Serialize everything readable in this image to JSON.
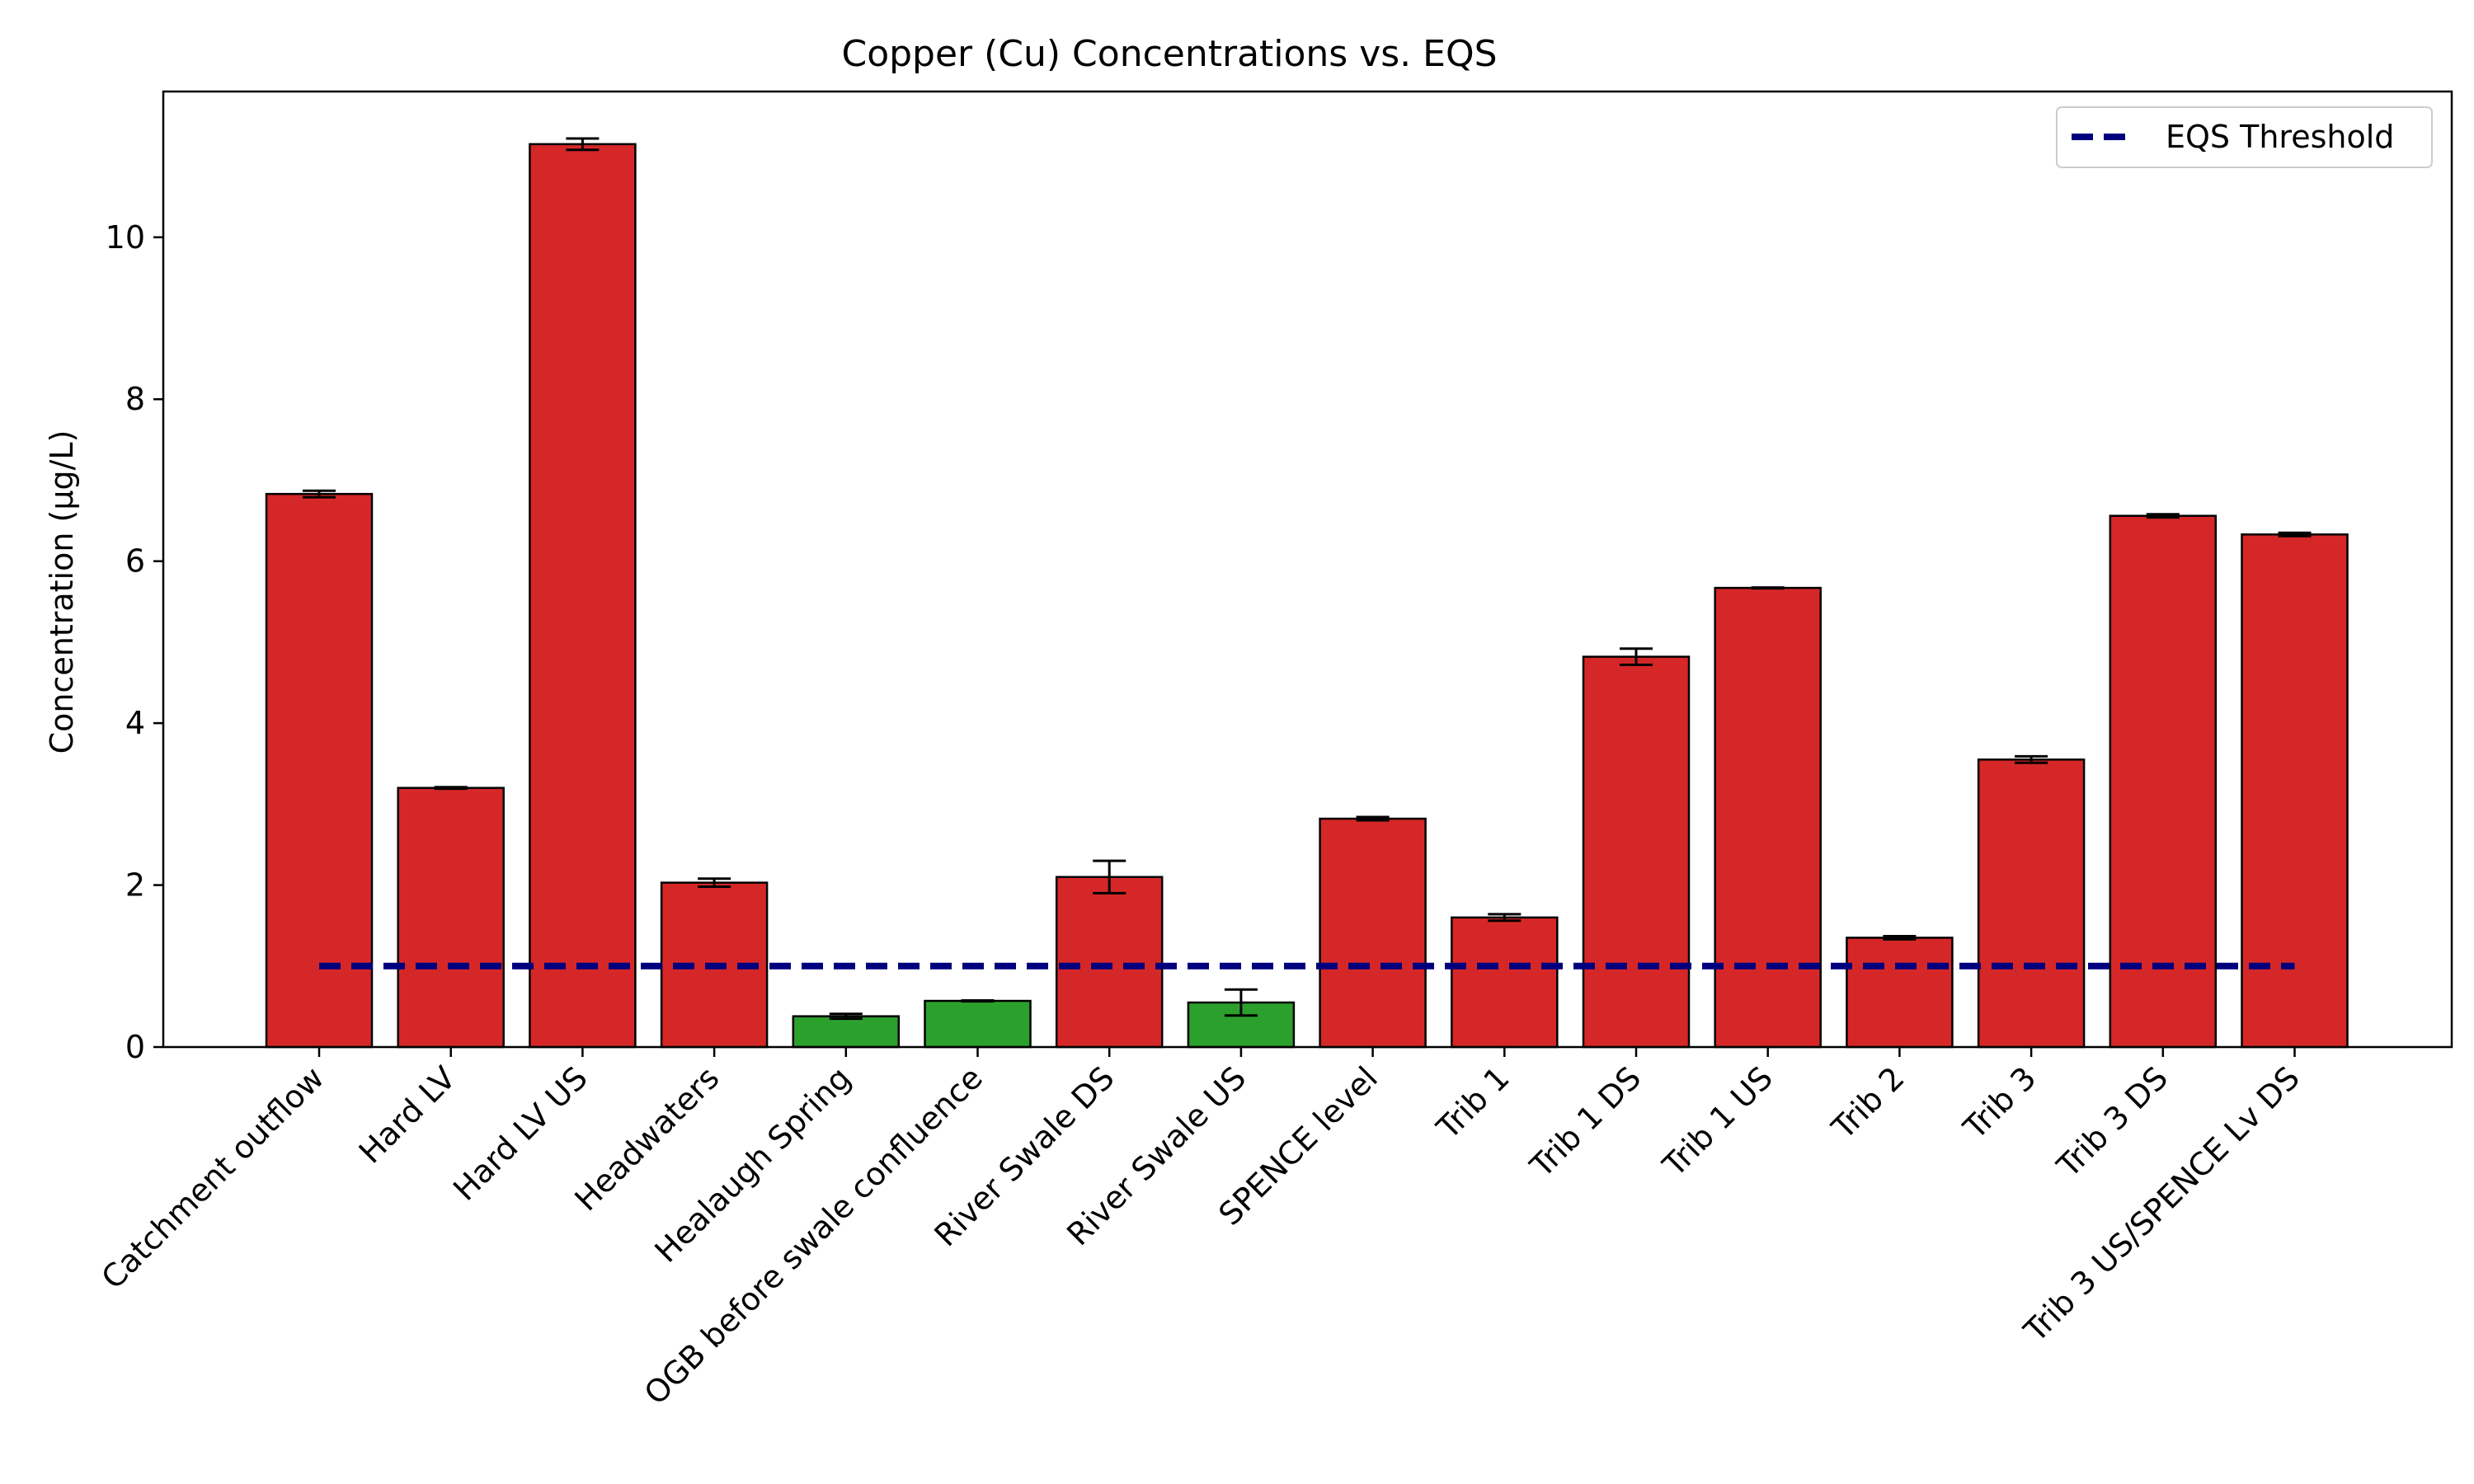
{
  "chart_data": {
    "type": "bar",
    "title": "Copper (Cu) Concentrations vs. EQS",
    "xlabel": "",
    "ylabel": "Concentration (µg/L)",
    "ylim": [
      0,
      11.8
    ],
    "yticks": [
      0,
      2,
      4,
      6,
      8,
      10
    ],
    "grid": false,
    "legend": {
      "placement": "top-right",
      "entries": [
        "EQS Threshold"
      ]
    },
    "eqs_threshold": {
      "name": "EQS Threshold",
      "value": 1.0,
      "color": "#00007f",
      "style": "dashed"
    },
    "colors": {
      "above": "#d62728",
      "below": "#2ca02c",
      "edge": "#000000"
    },
    "categories": [
      "Catchment outflow",
      "Hard LV",
      "Hard LV US",
      "Headwaters",
      "Healaugh Spring",
      "OGB before swale confluence",
      "River Swale DS",
      "River Swale US",
      "SPENCE level",
      "Trib 1",
      "Trib 1 DS",
      "Trib 1 US",
      "Trib 2",
      "Trib 3",
      "Trib 3 DS",
      "Trib 3 US/SPENCE Lv DS"
    ],
    "values": [
      6.83,
      3.2,
      11.15,
      2.03,
      0.38,
      0.57,
      2.1,
      0.55,
      2.82,
      1.6,
      4.82,
      5.67,
      1.35,
      3.55,
      6.56,
      6.33
    ],
    "errors": [
      0.04,
      0.01,
      0.07,
      0.05,
      0.03,
      0.005,
      0.2,
      0.16,
      0.02,
      0.04,
      0.1,
      0.005,
      0.02,
      0.04,
      0.02,
      0.02
    ]
  }
}
